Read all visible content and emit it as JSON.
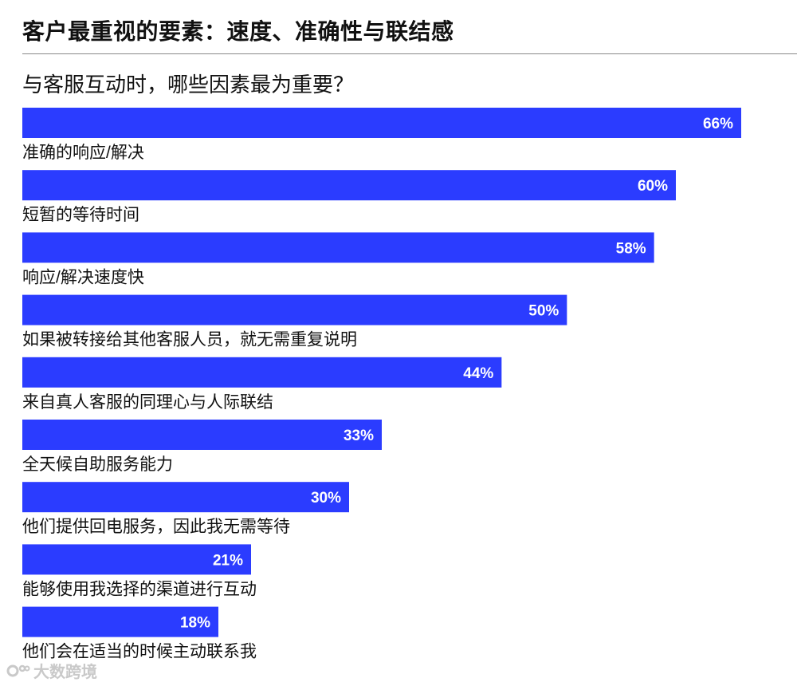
{
  "header": {
    "title": "客户最重视的要素：速度、准确性与联结感",
    "subtitle": "与客服互动时，哪些因素最为重要？"
  },
  "watermark": {
    "text": "大数跨境",
    "icon": "logo-icon"
  },
  "colors": {
    "bar": "#2B3CFF",
    "value_text": "#FFFFFF",
    "label_text": "#111111",
    "divider": "#8A8A8A"
  },
  "chart_data": {
    "type": "bar",
    "orientation": "horizontal",
    "categories": [
      "准确的响应/解决",
      "短暂的等待时间",
      "响应/解决速度快",
      "如果被转接给其他客服人员，就无需重复说明",
      "来自真人客服的同理心与人际联结",
      "全天候自助服务能力",
      "他们提供回电服务，因此我无需等待",
      "能够使用我选择的渠道进行互动",
      "他们会在适当的时候主动联系我"
    ],
    "values": [
      66,
      60,
      58,
      50,
      44,
      33,
      30,
      21,
      18
    ],
    "value_suffix": "%",
    "xlim": [
      0,
      70
    ],
    "grid": false,
    "legend": "none"
  }
}
